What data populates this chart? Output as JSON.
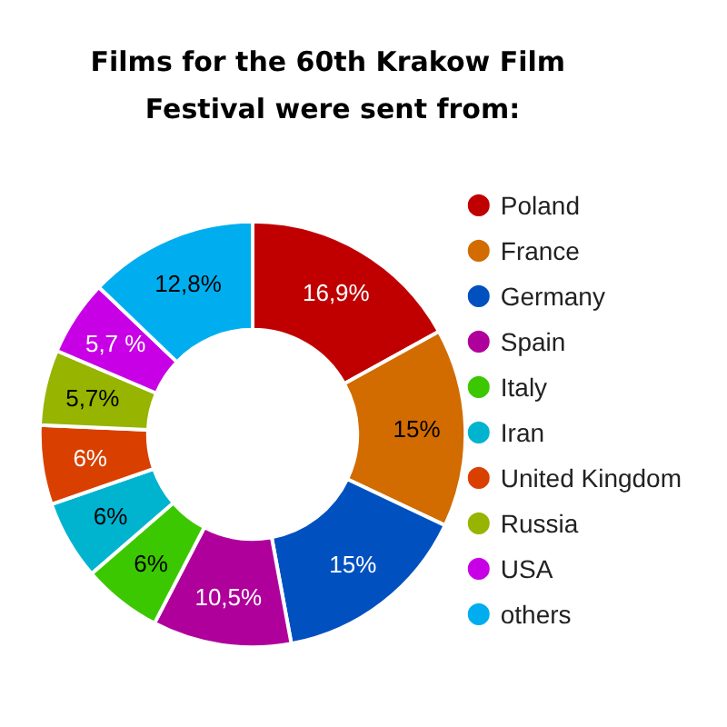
{
  "chart_data": {
    "type": "donut",
    "title": "Films for the 60th Krakow Film Festival were sent from:",
    "categories": [
      "Poland",
      "France",
      "Germany",
      "Spain",
      "Italy",
      "Iran",
      "United Kingdom",
      "Russia",
      "USA",
      "others"
    ],
    "values": [
      16.9,
      15,
      15,
      10.5,
      6,
      6,
      6,
      5.7,
      5.7,
      12.8
    ],
    "value_labels": [
      "16,9%",
      "15%",
      "15%",
      "10,5%",
      "6%",
      "6%",
      "6%",
      "5,7%",
      "5,7 %",
      "12,8%"
    ],
    "colors": [
      "#c00000",
      "#d26b00",
      "#0050c0",
      "#b0009b",
      "#3cc800",
      "#00b4d0",
      "#d94000",
      "#96b400",
      "#c800e6",
      "#00aef0"
    ],
    "legend": "right"
  }
}
